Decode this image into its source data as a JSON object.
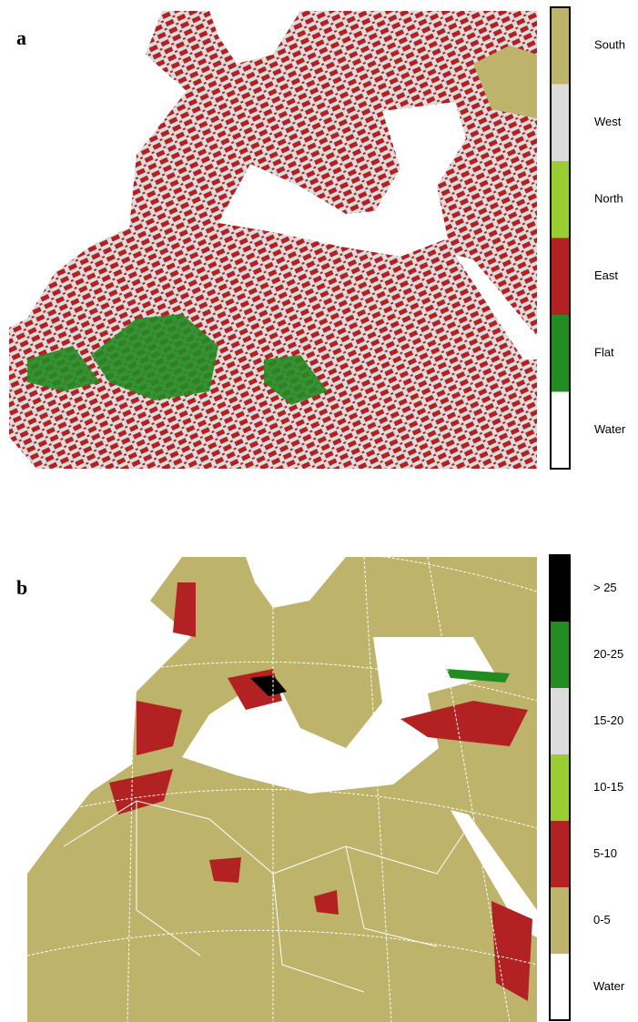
{
  "panels": [
    {
      "label": "a",
      "legend": [
        {
          "label": "South",
          "color": "#bdb36b"
        },
        {
          "label": "West",
          "color": "#dcdcdc"
        },
        {
          "label": "North",
          "color": "#9acd32"
        },
        {
          "label": "East",
          "color": "#b22222"
        },
        {
          "label": "Flat",
          "color": "#228b22"
        },
        {
          "label": "Water",
          "color": "#ffffff"
        }
      ]
    },
    {
      "label": "b",
      "legend": [
        {
          "label": "> 25",
          "color": "#000000"
        },
        {
          "label": "20-25",
          "color": "#228b22"
        },
        {
          "label": "15-20",
          "color": "#dcdcdc"
        },
        {
          "label": "10-15",
          "color": "#9acd32"
        },
        {
          "label": "5-10",
          "color": "#b22222"
        },
        {
          "label": "0-5",
          "color": "#bdb36b"
        },
        {
          "label": "Water",
          "color": "#ffffff"
        }
      ]
    }
  ]
}
